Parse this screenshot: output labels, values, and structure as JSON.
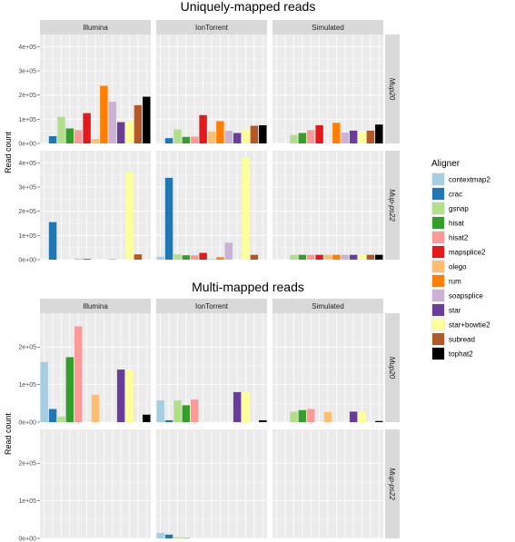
{
  "chart_data": [
    {
      "type": "bar",
      "title": "Uniquely-mapped reads",
      "ylabel": "Read count",
      "ylim": [
        0,
        450000
      ],
      "yticks": [
        "0e+00",
        "1e+05",
        "2e+05",
        "3e+05",
        "4e+05"
      ],
      "columns": [
        "Illumina",
        "IonTorrent",
        "Simulated"
      ],
      "rows": [
        "Mup20",
        "Mup-ps22"
      ],
      "series_order": [
        "contextmap2",
        "crac",
        "gsnap",
        "hisat",
        "hisat2",
        "mapsplice2",
        "olego",
        "rum",
        "soapsplice",
        "star",
        "star+bowtie2",
        "subread",
        "tophat2"
      ],
      "panels": {
        "Mup20": {
          "Illumina": [
            0,
            30000,
            110000,
            62000,
            55000,
            125000,
            18000,
            238000,
            172000,
            88000,
            92000,
            158000,
            193000
          ],
          "IonTorrent": [
            0,
            22000,
            58000,
            27000,
            28000,
            117000,
            50000,
            92000,
            52000,
            43000,
            58000,
            73000,
            75000
          ],
          "Simulated": [
            0,
            0,
            35000,
            43000,
            55000,
            75000,
            0,
            85000,
            45000,
            53000,
            48000,
            53000,
            78000
          ]
        },
        "Mup-ps22": {
          "Illumina": [
            0,
            155000,
            0,
            0,
            3000,
            3000,
            0,
            0,
            3000,
            0,
            360000,
            22000,
            0
          ],
          "IonTorrent": [
            12000,
            338000,
            22000,
            18000,
            18000,
            28000,
            3000,
            10000,
            70000,
            0,
            422000,
            20000,
            0
          ],
          "Simulated": [
            0,
            0,
            20000,
            20000,
            20000,
            20000,
            20000,
            20000,
            20000,
            20000,
            20000,
            20000,
            20000
          ]
        }
      }
    },
    {
      "type": "bar",
      "title": "Multi-mapped reads",
      "ylabel": "Read count",
      "ylim": [
        0,
        290000
      ],
      "yticks": [
        "0e+00",
        "1e+05",
        "2e+05"
      ],
      "columns": [
        "Illumina",
        "IonTorrent",
        "Simulated"
      ],
      "rows": [
        "Mup20",
        "Mup-ps22"
      ],
      "series_order": [
        "contextmap2",
        "crac",
        "gsnap",
        "hisat",
        "hisat2",
        "mapsplice2",
        "olego",
        "rum",
        "soapsplice",
        "star",
        "star+bowtie2",
        "subread",
        "tophat2"
      ],
      "panels": {
        "Mup20": {
          "Illumina": [
            160000,
            35000,
            15000,
            173000,
            255000,
            0,
            73000,
            0,
            0,
            140000,
            140000,
            0,
            20000
          ],
          "IonTorrent": [
            58000,
            5000,
            58000,
            45000,
            60000,
            0,
            0,
            0,
            0,
            80000,
            80000,
            0,
            5000
          ],
          "Simulated": [
            0,
            0,
            28000,
            32000,
            35000,
            0,
            27000,
            0,
            0,
            28000,
            28000,
            0,
            3000
          ]
        },
        "Mup-ps22": {
          "Illumina": [
            0,
            0,
            0,
            0,
            0,
            0,
            0,
            0,
            0,
            0,
            0,
            0,
            0
          ],
          "IonTorrent": [
            15000,
            10000,
            3000,
            1000,
            0,
            0,
            0,
            0,
            0,
            0,
            0,
            0,
            0
          ],
          "Simulated": [
            0,
            0,
            0,
            0,
            0,
            0,
            0,
            0,
            0,
            0,
            0,
            0,
            0
          ]
        }
      }
    }
  ],
  "legend": {
    "title": "Aligner",
    "placement": "right",
    "items": [
      {
        "label": "contextmap2",
        "color": "#a6cee3"
      },
      {
        "label": "crac",
        "color": "#1f78b4"
      },
      {
        "label": "gsnap",
        "color": "#b2df8a"
      },
      {
        "label": "hisat",
        "color": "#33a02c"
      },
      {
        "label": "hisat2",
        "color": "#fb9a99"
      },
      {
        "label": "mapsplice2",
        "color": "#e31a1c"
      },
      {
        "label": "olego",
        "color": "#fdbf6f"
      },
      {
        "label": "rum",
        "color": "#ff7f00"
      },
      {
        "label": "soapsplice",
        "color": "#cab2d6"
      },
      {
        "label": "star",
        "color": "#6a3d9a"
      },
      {
        "label": "star+bowtie2",
        "color": "#ffff99"
      },
      {
        "label": "subread",
        "color": "#b15928"
      },
      {
        "label": "tophat2",
        "color": "#000000"
      }
    ]
  },
  "theme": {
    "panel_bg": "#ebebeb",
    "grid_color": "#ffffff",
    "strip_bg": "#d9d9d9"
  }
}
